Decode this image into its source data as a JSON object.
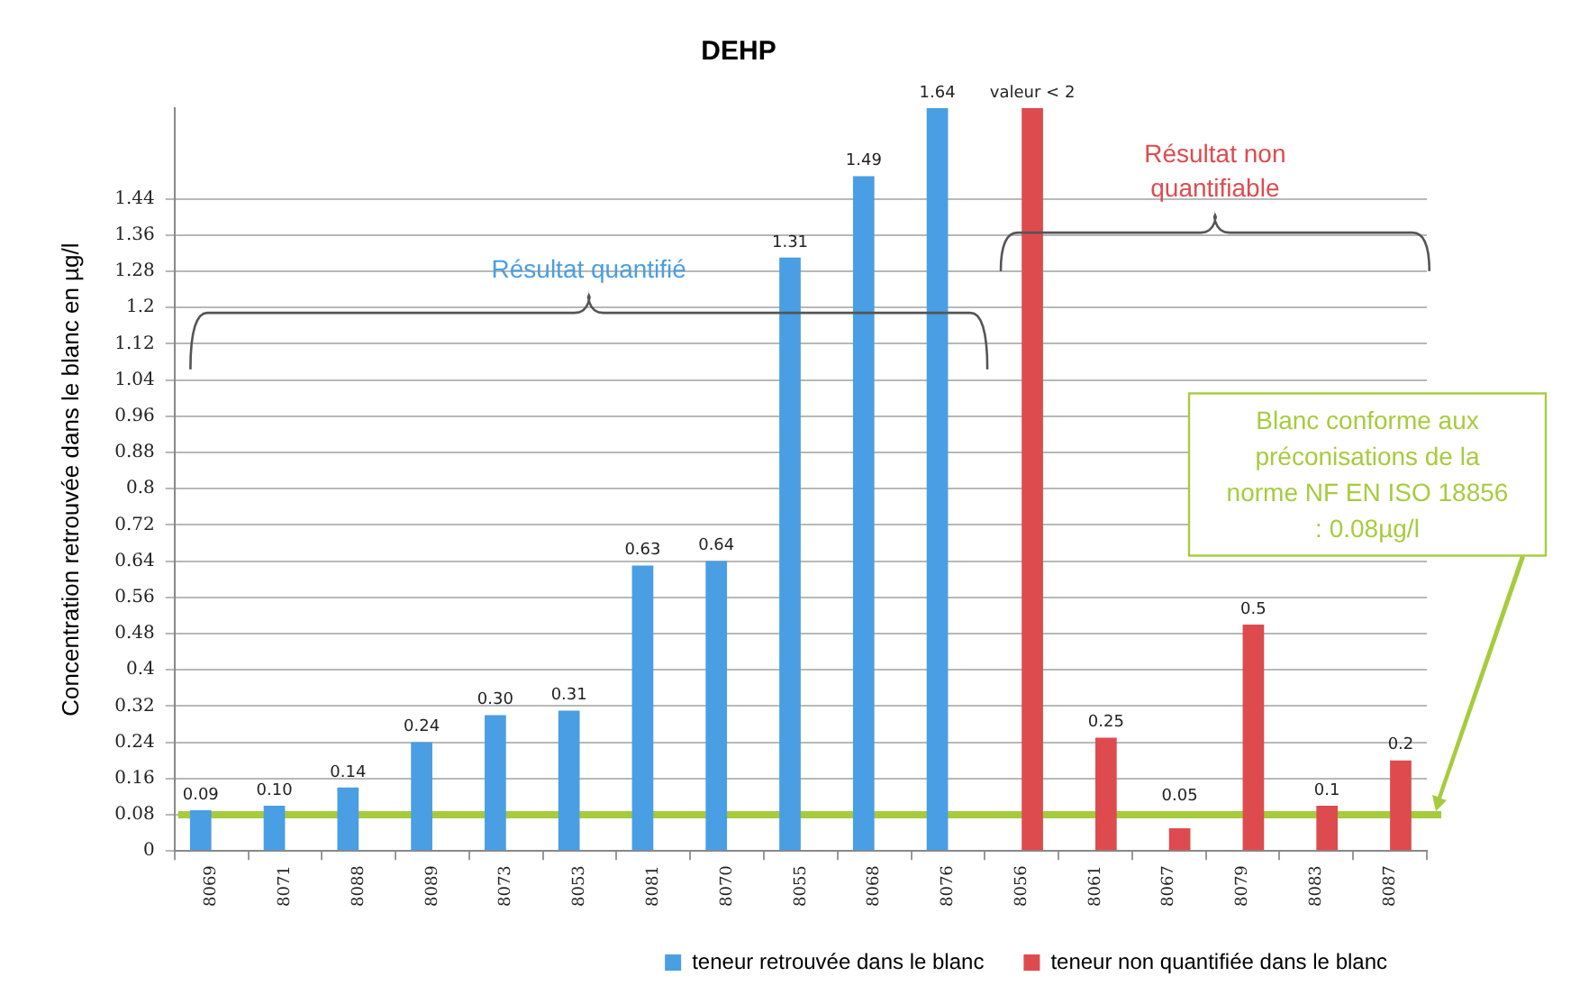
{
  "chart_data": {
    "type": "bar",
    "title": "DEHP",
    "ylabel": "Concentration retrouvée dans le blanc en µg/l",
    "categories": [
      "8069",
      "8071",
      "8088",
      "8089",
      "8073",
      "8053",
      "8081",
      "8070",
      "8055",
      "8068",
      "8076",
      "8056",
      "8061",
      "8067",
      "8079",
      "8083",
      "8087"
    ],
    "series": [
      {
        "name": "teneur retrouvée dans le blanc",
        "color": "#4a9ee3",
        "values": [
          0.09,
          0.1,
          0.14,
          0.24,
          0.3,
          0.31,
          0.63,
          0.64,
          1.31,
          1.49,
          1.64,
          null,
          null,
          null,
          null,
          null,
          null
        ],
        "value_labels": [
          "0.09",
          "0.10",
          "0.14",
          "0.24",
          "0.30",
          "0.31",
          "0.63",
          "0.64",
          "1.31",
          "1.49",
          "1.64",
          null,
          null,
          null,
          null,
          null,
          null
        ]
      },
      {
        "name": "teneur non quantifiée dans le blanc",
        "color": "#de4b4f",
        "values": [
          null,
          null,
          null,
          null,
          null,
          null,
          null,
          null,
          null,
          null,
          null,
          1.64,
          0.25,
          0.05,
          0.5,
          0.1,
          0.2
        ],
        "value_labels": [
          null,
          null,
          null,
          null,
          null,
          null,
          null,
          null,
          null,
          null,
          null,
          "valeur < 2",
          "0.25",
          "0.05",
          "0.5",
          "0.1",
          "0.2"
        ]
      }
    ],
    "ylim": [
      0,
      1.64
    ],
    "yticks": [
      0,
      0.08,
      0.16,
      0.24,
      0.32,
      0.4,
      0.48,
      0.56,
      0.64,
      0.72,
      0.8,
      0.88,
      0.96,
      1.04,
      1.12,
      1.2,
      1.28,
      1.36,
      1.44
    ],
    "grid": "y",
    "legend": "bottom",
    "ref_lines": [
      {
        "axis": "y",
        "value": 0.08,
        "label": "Blanc conforme aux préconisations de la norme NF EN ISO 18856 : 0.08µg/l",
        "color": "#a6cc3e"
      }
    ],
    "annotations": [
      "Résultat quantifié",
      "Résultat non quantifiable"
    ]
  }
}
